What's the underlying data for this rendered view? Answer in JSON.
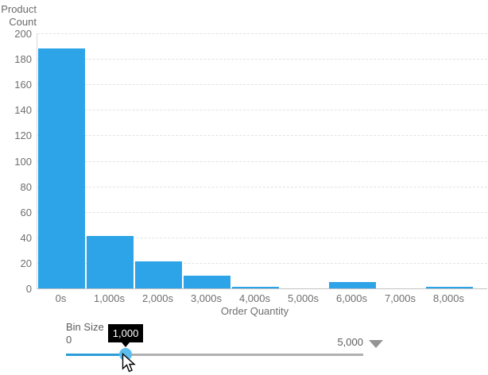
{
  "chart": {
    "y_axis_title_line1": "Product",
    "y_axis_title_line2": "Count"
  },
  "chart_data": {
    "type": "bar",
    "title": "",
    "categories": [
      "0s",
      "1,000s",
      "2,000s",
      "3,000s",
      "4,000s",
      "5,000s",
      "6,000s",
      "7,000s",
      "8,000s"
    ],
    "values": [
      188,
      41,
      21,
      10,
      1,
      0,
      5,
      0,
      1
    ],
    "xlabel": "Order Quantity",
    "ylabel": "Product Count",
    "ylim": [
      0,
      200
    ],
    "yticks": [
      0,
      20,
      40,
      60,
      80,
      100,
      120,
      140,
      160,
      180,
      200
    ],
    "grid": "horizontal-dashed",
    "legend": "none",
    "bar_color": "#2DA4E8"
  },
  "slider": {
    "label": "Bin Size",
    "min": 0,
    "max": 5000,
    "value": 1000,
    "min_label": "0",
    "max_label": "5,000",
    "value_label": "1,000",
    "active_track_color": "#2B9CD8",
    "inactive_track_color": "#B0B0B0",
    "handle_color": "#5BBDEE",
    "tooltip_bg": "#000000",
    "tooltip_text_color": "#FFFFFF"
  },
  "icons": {
    "dropdown_arrow": "▼",
    "mouse_cursor": "arrow-pointer"
  }
}
